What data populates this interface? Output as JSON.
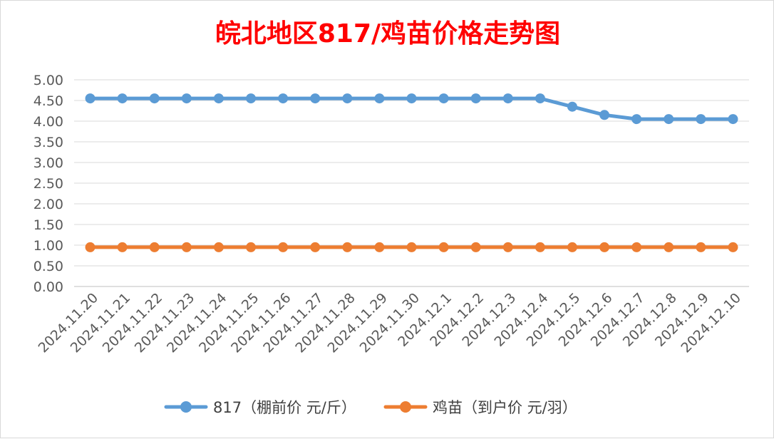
{
  "chart_data": {
    "type": "line",
    "title": "皖北地区817/鸡苗价格走势图",
    "title_color": "#ff0000",
    "categories": [
      "2024.11.20",
      "2024.11.21",
      "2024.11.22",
      "2024.11.23",
      "2024.11.24",
      "2024.11.25",
      "2024.11.26",
      "2024.11.27",
      "2024.11.28",
      "2024.11.29",
      "2024.11.30",
      "2024.12.1",
      "2024.12.2",
      "2024.12.3",
      "2024.12.4",
      "2024.12.5",
      "2024.12.6",
      "2024.12.7",
      "2024.12.8",
      "2024.12.9",
      "2024.12.10"
    ],
    "y_ticks": [
      "0.00",
      "0.50",
      "1.00",
      "1.50",
      "2.00",
      "2.50",
      "3.00",
      "3.50",
      "4.00",
      "4.50",
      "5.00"
    ],
    "ylim": [
      0,
      5
    ],
    "grid": true,
    "legend_position": "bottom",
    "series": [
      {
        "name": "817（棚前价 元/斤）",
        "color": "#5b9bd5",
        "values": [
          4.55,
          4.55,
          4.55,
          4.55,
          4.55,
          4.55,
          4.55,
          4.55,
          4.55,
          4.55,
          4.55,
          4.55,
          4.55,
          4.55,
          4.55,
          4.35,
          4.15,
          4.05,
          4.05,
          4.05,
          4.05
        ]
      },
      {
        "name": "鸡苗（到户价 元/羽）",
        "color": "#ed7d31",
        "values": [
          0.95,
          0.95,
          0.95,
          0.95,
          0.95,
          0.95,
          0.95,
          0.95,
          0.95,
          0.95,
          0.95,
          0.95,
          0.95,
          0.95,
          0.95,
          0.95,
          0.95,
          0.95,
          0.95,
          0.95,
          0.95
        ]
      }
    ]
  }
}
